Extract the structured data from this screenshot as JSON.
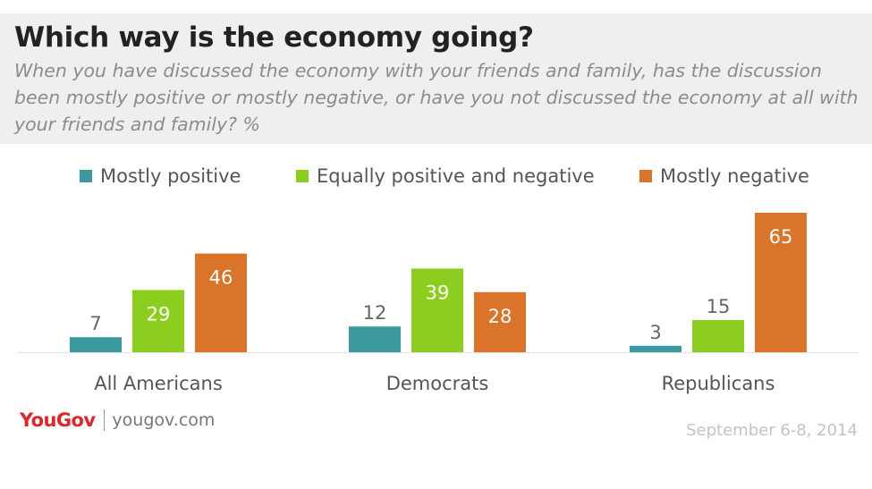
{
  "header": {
    "title": "Which way is the economy going?",
    "subtitle": "When you have discussed the economy with your friends and family, has the discussion been mostly positive or mostly negative, or have you not discussed the economy at all with your friends and family? %"
  },
  "footer": {
    "logo": "YouGov",
    "site": "yougov.com",
    "date": "September 6-8, 2014"
  },
  "colors": {
    "positive": "#3b9aa0",
    "equal": "#8cce1f",
    "negative": "#d9742a"
  },
  "chart_data": {
    "type": "bar",
    "title": "Which way is the economy going?",
    "categories": [
      "All Americans",
      "Democrats",
      "Republicans"
    ],
    "series": [
      {
        "name": "Mostly positive",
        "values": [
          7,
          12,
          3
        ]
      },
      {
        "name": "Equally positive and negative",
        "values": [
          29,
          39,
          15
        ]
      },
      {
        "name": "Mostly negative",
        "values": [
          46,
          28,
          65
        ]
      }
    ],
    "xlabel": "",
    "ylabel": "",
    "ylim": [
      0,
      65
    ],
    "grid": false,
    "legend_position": "top",
    "unit": "%"
  }
}
